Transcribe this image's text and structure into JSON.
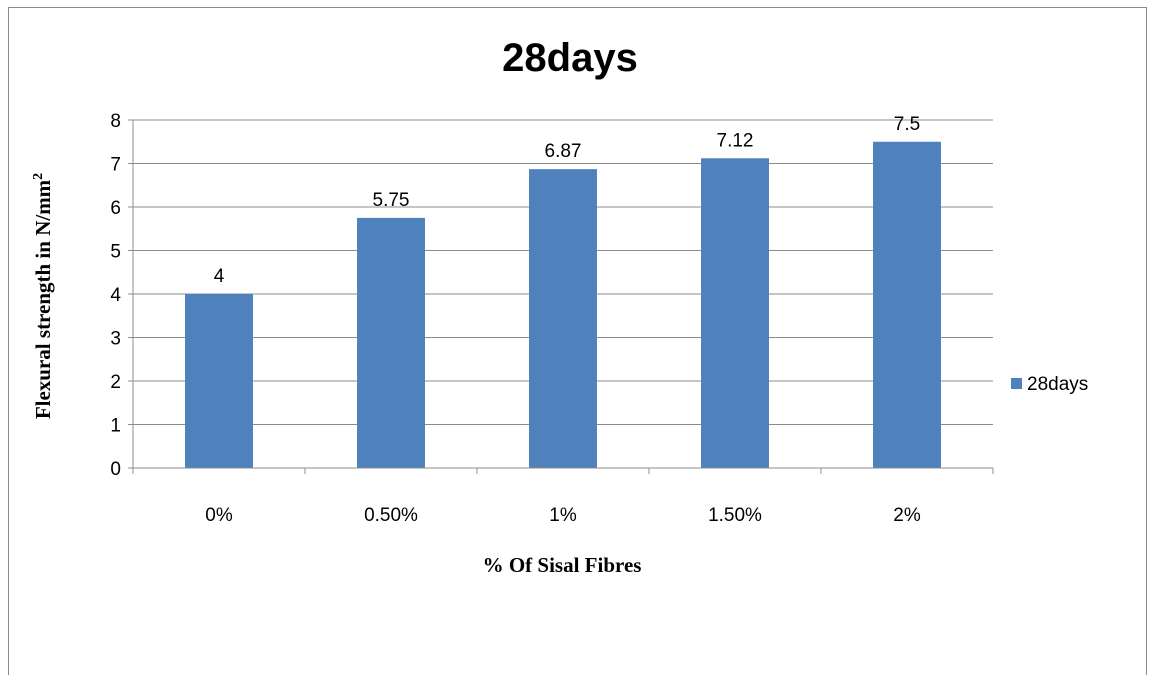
{
  "chart_data": {
    "type": "bar",
    "title": "28days",
    "xlabel": "% Of Sisal Fibres",
    "ylabel": "Flexural strength in N/mm",
    "ylabel_sup": "2",
    "categories": [
      "0%",
      "0.50%",
      "1%",
      "1.50%",
      "2%"
    ],
    "series": [
      {
        "name": "28days",
        "values": [
          4,
          5.75,
          6.87,
          7.12,
          7.5
        ],
        "color": "#4f81bd"
      }
    ],
    "data_labels": [
      "4",
      "5.75",
      "6.87",
      "7.12",
      "7.5"
    ],
    "ylim": [
      0,
      8
    ],
    "yticks": [
      0,
      1,
      2,
      3,
      4,
      5,
      6,
      7,
      8
    ],
    "grid": true,
    "legend_position": "right"
  }
}
